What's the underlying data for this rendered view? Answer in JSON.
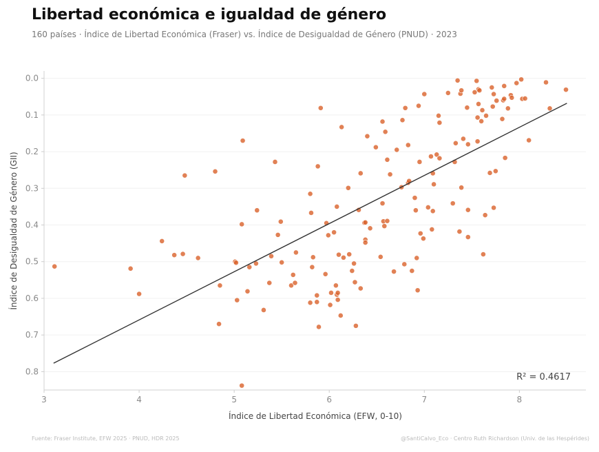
{
  "title": "Libertad económica e igualdad de género",
  "subtitle": "160 países · Índice de Libertad Económica (Fraser) vs. Índice de Desigualdad de Género (PNUD) · 2023",
  "footer_left": "Fuente: Fraser Institute, EFW 2025 · PNUD, HDR 2025",
  "footer_right": "@SantiCalvo_Eco · Centro Ruth Richardson (Univ. de las Hespérides)",
  "colors": {
    "point": "#d9622b",
    "line": "#333333",
    "grid": "#f0f0f0"
  },
  "chart_data": {
    "type": "scatter",
    "title": "Libertad económica e igualdad de género",
    "xlabel": "Índice de Libertad Económica (EFW, 0-10)",
    "ylabel": "Índice de Desigualdad de Género (GII)",
    "xlim": [
      3,
      8.7
    ],
    "ylim": [
      0.85,
      -0.02
    ],
    "y_inverted": true,
    "x_ticks": [
      "3",
      "4",
      "5",
      "6",
      "7",
      "8"
    ],
    "y_ticks": [
      "0.0",
      "0.1",
      "0.2",
      "0.3",
      "0.4",
      "0.5",
      "0.6",
      "0.7",
      "0.8"
    ],
    "grid": true,
    "annotation": "R² = 0.4617",
    "trendline": {
      "x": [
        3.1,
        8.5
      ],
      "y": [
        0.777,
        0.068
      ]
    },
    "points": [
      [
        3.11,
        0.513
      ],
      [
        3.91,
        0.519
      ],
      [
        4.0,
        0.588
      ],
      [
        4.24,
        0.444
      ],
      [
        4.37,
        0.482
      ],
      [
        4.46,
        0.479
      ],
      [
        4.48,
        0.265
      ],
      [
        4.62,
        0.49
      ],
      [
        4.8,
        0.254
      ],
      [
        4.84,
        0.67
      ],
      [
        4.85,
        0.565
      ],
      [
        5.01,
        0.5
      ],
      [
        5.02,
        0.503
      ],
      [
        5.03,
        0.605
      ],
      [
        5.08,
        0.398
      ],
      [
        5.09,
        0.17
      ],
      [
        5.08,
        0.838
      ],
      [
        5.14,
        0.581
      ],
      [
        5.16,
        0.515
      ],
      [
        5.23,
        0.505
      ],
      [
        5.24,
        0.36
      ],
      [
        5.31,
        0.632
      ],
      [
        5.37,
        0.558
      ],
      [
        5.39,
        0.485
      ],
      [
        5.43,
        0.228
      ],
      [
        5.46,
        0.427
      ],
      [
        5.49,
        0.391
      ],
      [
        5.5,
        0.502
      ],
      [
        5.6,
        0.565
      ],
      [
        5.62,
        0.536
      ],
      [
        5.64,
        0.558
      ],
      [
        5.65,
        0.475
      ],
      [
        5.8,
        0.315
      ],
      [
        5.8,
        0.612
      ],
      [
        5.81,
        0.367
      ],
      [
        5.82,
        0.515
      ],
      [
        5.83,
        0.488
      ],
      [
        5.87,
        0.592
      ],
      [
        5.87,
        0.61
      ],
      [
        5.88,
        0.24
      ],
      [
        5.89,
        0.678
      ],
      [
        5.91,
        0.081
      ],
      [
        5.96,
        0.534
      ],
      [
        5.97,
        0.395
      ],
      [
        5.99,
        0.428
      ],
      [
        6.01,
        0.618
      ],
      [
        6.02,
        0.585
      ],
      [
        6.05,
        0.42
      ],
      [
        6.07,
        0.565
      ],
      [
        6.08,
        0.35
      ],
      [
        6.08,
        0.59
      ],
      [
        6.09,
        0.585
      ],
      [
        6.09,
        0.604
      ],
      [
        6.1,
        0.481
      ],
      [
        6.12,
        0.647
      ],
      [
        6.13,
        0.133
      ],
      [
        6.15,
        0.489
      ],
      [
        6.2,
        0.299
      ],
      [
        6.21,
        0.48
      ],
      [
        6.24,
        0.525
      ],
      [
        6.26,
        0.505
      ],
      [
        6.27,
        0.556
      ],
      [
        6.28,
        0.675
      ],
      [
        6.31,
        0.359
      ],
      [
        6.33,
        0.259
      ],
      [
        6.33,
        0.573
      ],
      [
        6.37,
        0.394
      ],
      [
        6.38,
        0.393
      ],
      [
        6.38,
        0.44
      ],
      [
        6.38,
        0.448
      ],
      [
        6.4,
        0.158
      ],
      [
        6.43,
        0.409
      ],
      [
        6.49,
        0.188
      ],
      [
        6.54,
        0.487
      ],
      [
        6.56,
        0.118
      ],
      [
        6.56,
        0.341
      ],
      [
        6.57,
        0.39
      ],
      [
        6.58,
        0.403
      ],
      [
        6.59,
        0.146
      ],
      [
        6.61,
        0.222
      ],
      [
        6.61,
        0.389
      ],
      [
        6.64,
        0.262
      ],
      [
        6.68,
        0.527
      ],
      [
        6.71,
        0.195
      ],
      [
        6.76,
        0.297
      ],
      [
        6.77,
        0.114
      ],
      [
        6.79,
        0.507
      ],
      [
        6.8,
        0.081
      ],
      [
        6.83,
        0.182
      ],
      [
        6.83,
        0.285
      ],
      [
        6.84,
        0.28
      ],
      [
        6.87,
        0.525
      ],
      [
        6.9,
        0.326
      ],
      [
        6.91,
        0.36
      ],
      [
        6.92,
        0.49
      ],
      [
        6.93,
        0.578
      ],
      [
        6.94,
        0.075
      ],
      [
        6.95,
        0.228
      ],
      [
        6.96,
        0.423
      ],
      [
        6.99,
        0.437
      ],
      [
        7.0,
        0.043
      ],
      [
        7.04,
        0.352
      ],
      [
        7.07,
        0.213
      ],
      [
        7.08,
        0.412
      ],
      [
        7.09,
        0.259
      ],
      [
        7.09,
        0.362
      ],
      [
        7.1,
        0.289
      ],
      [
        7.13,
        0.208
      ],
      [
        7.15,
        0.102
      ],
      [
        7.16,
        0.121
      ],
      [
        7.16,
        0.218
      ],
      [
        7.25,
        0.04
      ],
      [
        7.3,
        0.341
      ],
      [
        7.32,
        0.228
      ],
      [
        7.33,
        0.177
      ],
      [
        7.35,
        0.006
      ],
      [
        7.37,
        0.418
      ],
      [
        7.38,
        0.042
      ],
      [
        7.39,
        0.033
      ],
      [
        7.39,
        0.298
      ],
      [
        7.41,
        0.165
      ],
      [
        7.45,
        0.08
      ],
      [
        7.46,
        0.18
      ],
      [
        7.46,
        0.359
      ],
      [
        7.46,
        0.433
      ],
      [
        7.53,
        0.038
      ],
      [
        7.55,
        0.007
      ],
      [
        7.56,
        0.107
      ],
      [
        7.56,
        0.172
      ],
      [
        7.57,
        0.07
      ],
      [
        7.57,
        0.03
      ],
      [
        7.58,
        0.033
      ],
      [
        7.6,
        0.117
      ],
      [
        7.61,
        0.087
      ],
      [
        7.62,
        0.48
      ],
      [
        7.64,
        0.373
      ],
      [
        7.65,
        0.102
      ],
      [
        7.69,
        0.258
      ],
      [
        7.71,
        0.025
      ],
      [
        7.72,
        0.077
      ],
      [
        7.73,
        0.043
      ],
      [
        7.73,
        0.353
      ],
      [
        7.75,
        0.253
      ],
      [
        7.76,
        0.061
      ],
      [
        7.82,
        0.111
      ],
      [
        7.83,
        0.06
      ],
      [
        7.84,
        0.056
      ],
      [
        7.84,
        0.021
      ],
      [
        7.85,
        0.217
      ],
      [
        7.88,
        0.082
      ],
      [
        7.91,
        0.046
      ],
      [
        7.92,
        0.053
      ],
      [
        7.97,
        0.013
      ],
      [
        8.02,
        0.003
      ],
      [
        8.03,
        0.056
      ],
      [
        8.06,
        0.055
      ],
      [
        8.1,
        0.169
      ],
      [
        8.28,
        0.011
      ],
      [
        8.32,
        0.082
      ],
      [
        8.49,
        0.031
      ]
    ]
  }
}
